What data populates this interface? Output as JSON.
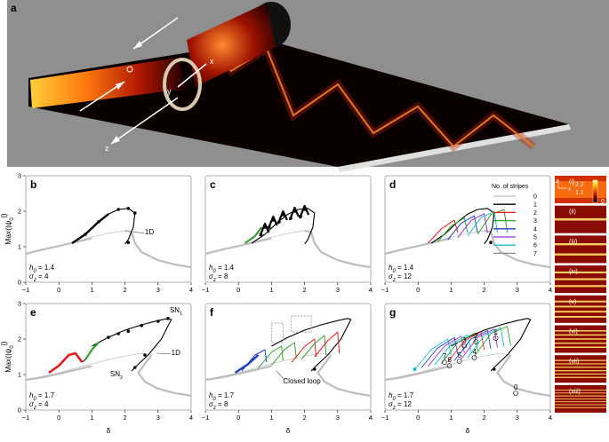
{
  "figure": {
    "panel_a": {
      "letter": "a",
      "axis_labels": [
        "x",
        "z",
        "y"
      ]
    },
    "panels": [
      {
        "letter": "b",
        "h0": "1.4",
        "sigma_z": "4",
        "mode": "b"
      },
      {
        "letter": "c",
        "h0": "1.4",
        "sigma_z": "8",
        "mode": "c"
      },
      {
        "letter": "d",
        "h0": "1.4",
        "sigma_z": "12",
        "mode": "d"
      },
      {
        "letter": "e",
        "h0": "1.7",
        "sigma_z": "4",
        "mode": "e"
      },
      {
        "letter": "f",
        "h0": "1.7",
        "sigma_z": "8",
        "mode": "f"
      },
      {
        "letter": "g",
        "h0": "1.7",
        "sigma_z": "12",
        "mode": "g"
      }
    ],
    "h0_prefix": "h",
    "h0_sub": "0",
    "sigma_prefix": "σ",
    "sigma_sub": "z",
    "annotations": {
      "one_d": "1D",
      "sn1_base": "SN",
      "sn1_sub": "1",
      "sn2_base": "SN",
      "sn2_sub": "2",
      "closed_loop": "Closed loop",
      "stripe_numbers": [
        "1",
        "2",
        "3",
        "4",
        "5",
        "6",
        "7",
        "0"
      ]
    },
    "legend": {
      "title": "No. of stripes",
      "items": [
        {
          "label": "0",
          "color": "#bdbdbd"
        },
        {
          "label": "1",
          "color": "#000000"
        },
        {
          "label": "2",
          "color": "#e41a1c"
        },
        {
          "label": "3",
          "color": "#33a02c"
        },
        {
          "label": "4",
          "color": "#1f3fbf"
        },
        {
          "label": "5",
          "color": "#9b30d9"
        },
        {
          "label": "6",
          "color": "#17becf"
        },
        {
          "label": "7",
          "color": "#8c8c8c"
        }
      ]
    },
    "side_column": {
      "labels": [
        "(i)",
        "(ii)",
        "(iii)",
        "(iv)",
        "(v)",
        "(vi)",
        "(vii)",
        "(viii)"
      ],
      "stripes": [
        0,
        1,
        2,
        3,
        4,
        5,
        6,
        7
      ],
      "colorbar_ticks": [
        "2.2",
        "1.1",
        "0"
      ],
      "axis_x": "x",
      "axis_z": "z"
    }
  },
  "chart_data": {
    "type": "line",
    "xlabel": "δ",
    "ylabel_base": "Max(|ψ",
    "ylabel_sub": "0",
    "ylabel_end": "|)",
    "xlim": [
      -1,
      4
    ],
    "ylim": [
      0,
      3
    ],
    "xticks": [
      "-1",
      "0",
      "1",
      "2",
      "3",
      "4"
    ],
    "yticks": [
      "0",
      "1",
      "2",
      "3"
    ],
    "series": [
      {
        "name": "0",
        "panels": "b,c,d",
        "color": "#bdbdbd",
        "x": [
          -1.0,
          -0.5,
          0.0,
          0.5,
          1.0,
          1.5,
          2.0,
          2.2,
          2.3,
          2.5,
          3.0,
          3.5,
          4.0
        ],
        "y": [
          0.8,
          0.9,
          1.02,
          1.15,
          1.27,
          1.38,
          1.45,
          1.42,
          1.1,
          0.85,
          0.62,
          0.5,
          0.42
        ]
      },
      {
        "name": "0",
        "panels": "e,f,g",
        "color": "#bdbdbd",
        "x": [
          -1.0,
          -0.5,
          0.0,
          0.5,
          1.0,
          1.5,
          2.0,
          2.5,
          2.8,
          2.6,
          2.4,
          2.6,
          3.0,
          3.5,
          4.0
        ],
        "y": [
          0.85,
          0.95,
          1.05,
          1.18,
          1.3,
          1.42,
          1.52,
          1.6,
          1.55,
          1.3,
          1.05,
          0.8,
          0.6,
          0.48,
          0.4
        ]
      },
      {
        "name": "1",
        "panels": "b,c,d",
        "color": "#000000",
        "x": [
          0.4,
          0.8,
          1.2,
          1.5,
          1.8,
          2.1,
          2.3,
          2.25,
          2.1,
          2.0
        ],
        "y": [
          1.1,
          1.35,
          1.7,
          1.92,
          2.05,
          2.08,
          1.95,
          1.55,
          1.2,
          1.08
        ]
      },
      {
        "name": "1",
        "panels": "e,f,g",
        "color": "#000000",
        "x": [
          1.0,
          1.5,
          2.0,
          2.5,
          3.0,
          3.3,
          3.4,
          3.1,
          2.7,
          2.3,
          2.2
        ],
        "y": [
          1.8,
          2.05,
          2.25,
          2.4,
          2.52,
          2.58,
          2.55,
          2.0,
          1.55,
          1.2,
          1.1
        ]
      }
    ]
  }
}
